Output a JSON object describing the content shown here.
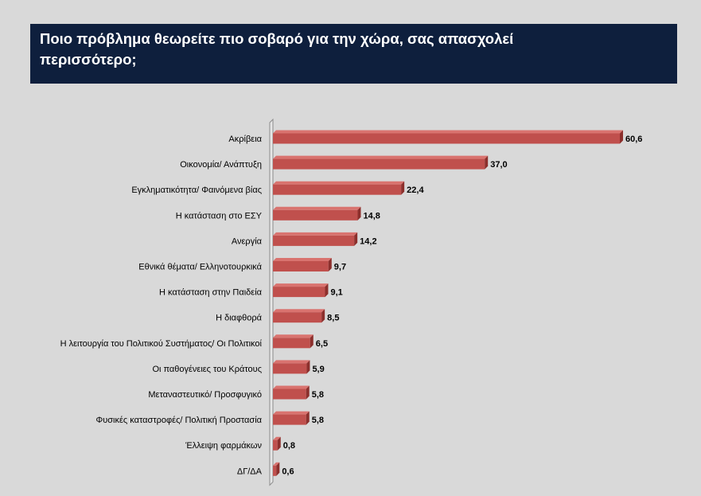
{
  "header": {
    "title": "Ποιο πρόβλημα θεωρείτε πιο σοβαρό για την χώρα, σας απασχολεί περισσότερο;"
  },
  "colors": {
    "title_bg": "#0e1f3d",
    "bar": "#c0504d",
    "bar_top": "#d9736f",
    "bar_end": "#8c2f2c",
    "background": "#d9d9d9"
  },
  "chart_data": {
    "type": "bar",
    "orientation": "horizontal",
    "title": "Ποιο πρόβλημα θεωρείτε πιο σοβαρό για την χώρα, σας απασχολεί περισσότερο;",
    "categories": [
      "Ακρίβεια",
      "Οικονομία/ Ανάπτυξη",
      "Εγκληματικότητα/ Φαινόμενα βίας",
      "Η κατάσταση στο ΕΣΥ",
      "Ανεργία",
      "Εθνικά θέματα/ Ελληνοτουρκικά",
      "Η κατάσταση στην Παιδεία",
      "Η διαφθορά",
      "Η λειτουργία του Πολιτικού Συστήματος/ Οι Πολιτικοί",
      "Οι παθογένειες του Κράτους",
      "Μεταναστευτικό/ Προσφυγικό",
      "Φυσικές καταστροφές/ Πολιτική Προστασία",
      "Έλλειψη φαρμάκων",
      "ΔΓ/ΔΑ"
    ],
    "values": [
      60.6,
      37.0,
      22.4,
      14.8,
      14.2,
      9.7,
      9.1,
      8.5,
      6.5,
      5.9,
      5.8,
      5.8,
      0.8,
      0.6
    ],
    "value_labels": [
      "60,6",
      "37,0",
      "22,4",
      "14,8",
      "14,2",
      "9,7",
      "9,1",
      "8,5",
      "6,5",
      "5,9",
      "5,8",
      "5,8",
      "0,8",
      "0,6"
    ],
    "xlim": [
      0,
      62
    ],
    "grid": false,
    "legend": "none"
  }
}
